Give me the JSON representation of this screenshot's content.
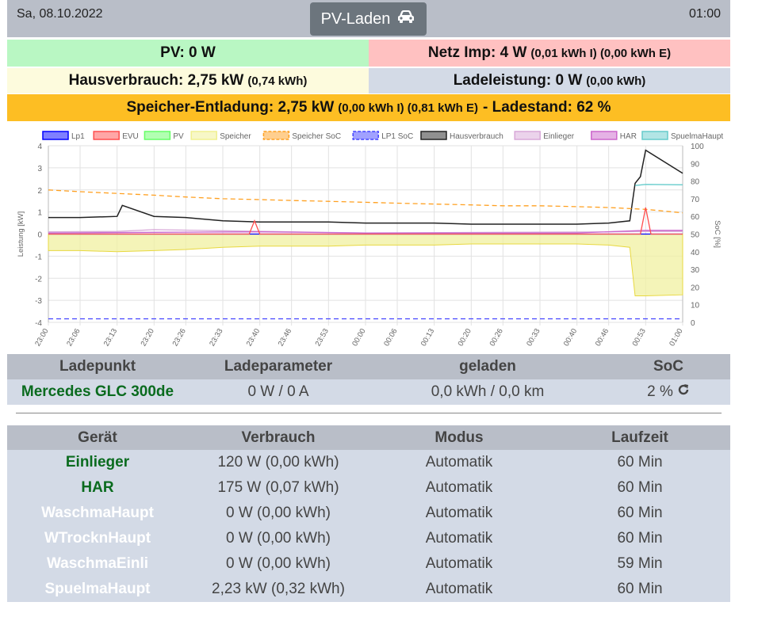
{
  "header": {
    "date": "Sa, 08.10.2022",
    "time": "01:00",
    "mode_label": "PV-Laden",
    "mode_icon": "car-icon"
  },
  "summary": {
    "pv": "PV: 0 W",
    "netz": "Netz Imp: 4 W",
    "netz_detail": "(0,01 kWh I) (0,00 kWh E)",
    "haus": "Hausverbrauch: 2,75 kW",
    "haus_detail": "(0,74 kWh)",
    "lade": "Ladeleistung: 0 W",
    "lade_detail": "(0,00 kWh)",
    "speicher": "Speicher-Entladung: 2,75 kW",
    "speicher_detail": "(0,00 kWh I) (0,81 kWh E)",
    "ladestand": "- Ladestand: 62 %",
    "colors": {
      "pv": "#b9f7c3",
      "netz": "#ffc1c1",
      "haus": "#fdfbdd",
      "lade": "#d3dae6",
      "speicher": "#fdbe23"
    }
  },
  "chart_data": {
    "type": "line",
    "legend": [
      "Lp1",
      "EVU",
      "PV",
      "Speicher",
      "Speicher SoC",
      "LP1 SoC",
      "Hausverbrauch",
      "Einlieger",
      "HAR",
      "SpuelmaHaupt"
    ],
    "legend_colors": [
      "#0000ff",
      "#ff4d4d",
      "#66ff66",
      "#f0f090",
      "#ffa020",
      "#4444ff",
      "#222222",
      "#d8a8d8",
      "#cc66cc",
      "#66cccc"
    ],
    "legend_placement": "top",
    "xlabel": "",
    "ylabel": "Leistung [kW]",
    "y2label": "SoC [%]",
    "ylim": [
      -4,
      4
    ],
    "y_ticks": [
      "4",
      "3",
      "2",
      "1",
      "0",
      "-1",
      "-2",
      "-3",
      "-4"
    ],
    "y2lim": [
      0,
      100
    ],
    "y2_ticks": [
      "100",
      "90",
      "80",
      "70",
      "60",
      "50",
      "40",
      "30",
      "20",
      "10",
      "0"
    ],
    "x_ticks": [
      "23:00",
      "23:06",
      "23:13",
      "23:20",
      "23:26",
      "23:33",
      "23:40",
      "23:46",
      "23:53",
      "00:00",
      "00:06",
      "00:13",
      "00:20",
      "00:26",
      "00:33",
      "00:40",
      "00:46",
      "00:53",
      "01:00"
    ],
    "grid": true,
    "series": [
      {
        "name": "Hausverbrauch",
        "x": [
          "23:00",
          "23:06",
          "23:13",
          "23:14",
          "23:20",
          "23:26",
          "23:33",
          "23:40",
          "23:46",
          "23:53",
          "00:00",
          "00:06",
          "00:13",
          "00:20",
          "00:26",
          "00:33",
          "00:40",
          "00:46",
          "00:50",
          "00:51",
          "00:52",
          "00:53",
          "01:00"
        ],
        "values": [
          0.75,
          0.75,
          0.8,
          1.3,
          0.8,
          0.75,
          0.6,
          0.55,
          0.55,
          0.55,
          0.5,
          0.5,
          0.5,
          0.45,
          0.45,
          0.45,
          0.45,
          0.5,
          0.6,
          2.3,
          2.6,
          3.8,
          2.75
        ]
      },
      {
        "name": "Speicher",
        "x": [
          "23:00",
          "23:06",
          "23:13",
          "23:20",
          "23:26",
          "23:33",
          "23:40",
          "23:46",
          "23:53",
          "00:00",
          "00:06",
          "00:13",
          "00:20",
          "00:26",
          "00:33",
          "00:40",
          "00:46",
          "00:50",
          "00:51",
          "00:53",
          "01:00"
        ],
        "values": [
          -0.75,
          -0.75,
          -0.8,
          -0.75,
          -0.7,
          -0.6,
          -0.55,
          -0.55,
          -0.55,
          -0.5,
          -0.5,
          -0.5,
          -0.45,
          -0.45,
          -0.45,
          -0.45,
          -0.5,
          -0.6,
          -2.8,
          -2.8,
          -2.75
        ]
      },
      {
        "name": "Speicher SoC",
        "x": [
          "23:00",
          "23:06",
          "23:13",
          "23:20",
          "23:26",
          "23:33",
          "23:40",
          "23:46",
          "23:53",
          "00:00",
          "00:06",
          "00:13",
          "00:20",
          "00:26",
          "00:33",
          "00:40",
          "00:46",
          "00:53",
          "01:00"
        ],
        "values": [
          75,
          74,
          73,
          72,
          71,
          70,
          69.5,
          69,
          68.5,
          68,
          67.5,
          67,
          66.5,
          66,
          66,
          65.5,
          65,
          64,
          62
        ]
      },
      {
        "name": "SpuelmaHaupt",
        "x": [
          "00:51",
          "00:53",
          "01:00"
        ],
        "values": [
          2.2,
          2.25,
          2.23
        ]
      },
      {
        "name": "Einlieger",
        "x": [
          "23:00",
          "23:13",
          "23:20",
          "23:33",
          "23:46",
          "00:00",
          "00:46",
          "00:53",
          "01:00"
        ],
        "values": [
          0.1,
          0.12,
          0.2,
          0.15,
          0.1,
          0.05,
          0.1,
          0.12,
          0.12
        ]
      },
      {
        "name": "HAR",
        "x": [
          "23:00",
          "23:20",
          "23:40",
          "00:00",
          "00:20",
          "00:40",
          "00:53",
          "01:00"
        ],
        "values": [
          0.05,
          0.08,
          0.1,
          0.05,
          0.05,
          0.05,
          0.17,
          0.17
        ]
      },
      {
        "name": "LP1 SoC",
        "x": [
          "23:00",
          "01:00"
        ],
        "values": [
          2,
          2
        ]
      },
      {
        "name": "Lp1",
        "x": [
          "23:00",
          "01:00"
        ],
        "values": [
          0,
          0
        ]
      },
      {
        "name": "EVU",
        "x": [
          "23:00",
          "23:38",
          "23:39",
          "23:40",
          "00:52",
          "00:53",
          "00:54",
          "01:00"
        ],
        "values": [
          0,
          0,
          0.6,
          0,
          0,
          1.2,
          0,
          0
        ]
      }
    ]
  },
  "ladepunkt": {
    "headers": [
      "Ladepunkt",
      "Ladeparameter",
      "geladen",
      "SoC"
    ],
    "rows": [
      {
        "name": "Mercedes GLC 300de",
        "param": "0 W / 0 A",
        "geladen": "0,0 kWh / 0,0 km",
        "soc": "2 %"
      }
    ]
  },
  "geraete": {
    "headers": [
      "Gerät",
      "Verbrauch",
      "Modus",
      "Laufzeit"
    ],
    "rows": [
      {
        "name": "Einlieger",
        "verbrauch": "120 W (0,00 kWh)",
        "modus": "Automatik",
        "laufzeit": "60 Min",
        "status": "on"
      },
      {
        "name": "HAR",
        "verbrauch": "175 W (0,07 kWh)",
        "modus": "Automatik",
        "laufzeit": "60 Min",
        "status": "on"
      },
      {
        "name": "WaschmaHaupt",
        "verbrauch": "0 W (0,00 kWh)",
        "modus": "Automatik",
        "laufzeit": "60 Min",
        "status": "off"
      },
      {
        "name": "WTrocknHaupt",
        "verbrauch": "0 W (0,00 kWh)",
        "modus": "Automatik",
        "laufzeit": "60 Min",
        "status": "off"
      },
      {
        "name": "WaschmaEinli",
        "verbrauch": "0 W (0,00 kWh)",
        "modus": "Automatik",
        "laufzeit": "59 Min",
        "status": "off"
      },
      {
        "name": "SpuelmaHaupt",
        "verbrauch": "2,23 kW (0,32 kWh)",
        "modus": "Automatik",
        "laufzeit": "60 Min",
        "status": "off"
      }
    ]
  }
}
